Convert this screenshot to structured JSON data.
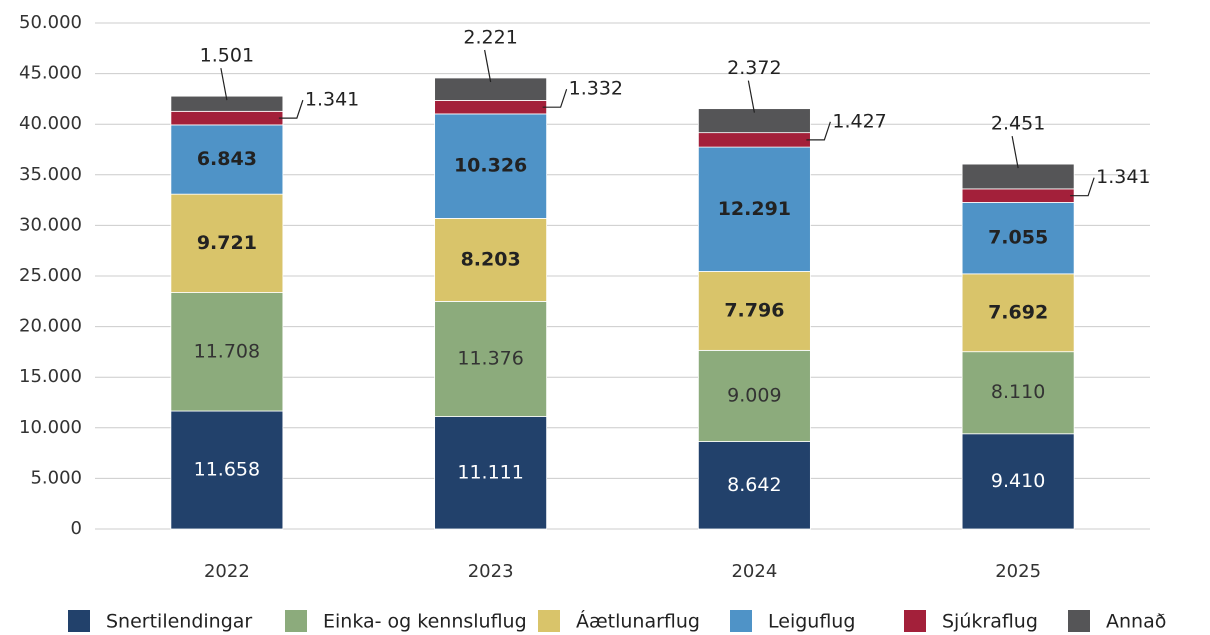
{
  "chart_data": {
    "type": "stacked_bar",
    "categories": [
      "2022",
      "2023",
      "2024",
      "2025"
    ],
    "series": [
      {
        "name": "Snertilendingar",
        "color": "#22416b",
        "values": [
          11658,
          11111,
          8642,
          9410
        ],
        "value_labels": [
          "11.658",
          "11.111",
          "8.642",
          "9.410"
        ]
      },
      {
        "name": "Einka- og kennsluflug",
        "color": "#8cab7c",
        "values": [
          11708,
          11376,
          9009,
          8110
        ],
        "value_labels": [
          "11.708",
          "11.376",
          "9.009",
          "8.110"
        ]
      },
      {
        "name": "Áætlunarflug",
        "color": "#d9c46a",
        "values": [
          9721,
          8203,
          7796,
          7692
        ],
        "value_labels": [
          "9.721",
          "8.203",
          "7.796",
          "7.692"
        ]
      },
      {
        "name": "Leiguflug",
        "color": "#4f93c7",
        "values": [
          6843,
          10326,
          12291,
          7055
        ],
        "value_labels": [
          "6.843",
          "10.326",
          "12.291",
          "7.055"
        ]
      },
      {
        "name": "Sjúkraflug",
        "color": "#a3203a",
        "values": [
          1341,
          1332,
          1427,
          1341
        ],
        "value_labels": [
          "1.341",
          "1.332",
          "1.427",
          "1.341"
        ]
      },
      {
        "name": "Annað",
        "color": "#555557",
        "values": [
          1501,
          2221,
          2372,
          2451
        ],
        "value_labels": [
          "1.501",
          "2.221",
          "2.372",
          "2.451"
        ]
      }
    ],
    "ylim": [
      0,
      50000
    ],
    "yticks": [
      0,
      {
        "value": 5000,
        "label": "5.000"
      },
      {
        "value": 10000,
        "label": "10.000"
      },
      {
        "value": 15000,
        "label": "15.000"
      },
      {
        "value": 20000,
        "label": "20.000"
      },
      {
        "value": 25000,
        "label": "25.000"
      },
      {
        "value": 30000,
        "label": "30.000"
      },
      {
        "value": 35000,
        "label": "35.000"
      },
      {
        "value": 40000,
        "label": "40.000"
      },
      {
        "value": 45000,
        "label": "45.000"
      },
      {
        "value": 50000,
        "label": "50.000"
      }
    ],
    "grid": true,
    "legend": "bottom"
  }
}
